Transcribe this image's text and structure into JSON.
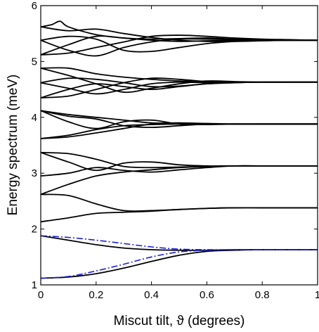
{
  "chart_data": {
    "type": "line",
    "title": "",
    "xlabel": "Miscut tilt, ϑ  (degrees)",
    "ylabel": "Energy spectrum  (meV)",
    "xlim": [
      0,
      1
    ],
    "ylim": [
      1,
      6
    ],
    "xticks": [
      0,
      0.2,
      0.4,
      0.6,
      0.8,
      1
    ],
    "xtick_labels": [
      "0",
      "0.2",
      "0.4",
      "0.6",
      "0.8",
      "1"
    ],
    "yticks": [
      1,
      2,
      3,
      4,
      5,
      6
    ],
    "ytick_labels": [
      "1",
      "2",
      "3",
      "4",
      "5",
      "6"
    ],
    "grid": false,
    "legend": "none",
    "colors": {
      "solid": "#000000",
      "dashdot": "#1f1fcf"
    },
    "series": [
      {
        "style": "solid",
        "x": [
          0,
          0.1,
          0.2,
          0.3,
          0.4,
          0.5,
          0.6,
          0.7,
          0.8,
          0.9,
          1.0
        ],
        "y": [
          1.12,
          1.14,
          1.2,
          1.3,
          1.42,
          1.53,
          1.6,
          1.62,
          1.63,
          1.63,
          1.63
        ]
      },
      {
        "style": "solid",
        "x": [
          0,
          0.1,
          0.2,
          0.3,
          0.4,
          0.5,
          0.6,
          0.7,
          0.8,
          0.9,
          1.0
        ],
        "y": [
          1.88,
          1.8,
          1.72,
          1.66,
          1.63,
          1.62,
          1.62,
          1.63,
          1.63,
          1.63,
          1.63
        ]
      },
      {
        "style": "dashdot",
        "x": [
          0,
          0.1,
          0.2,
          0.3,
          0.4,
          0.5,
          0.6,
          0.7,
          0.8,
          0.9,
          1.0
        ],
        "y": [
          1.12,
          1.15,
          1.25,
          1.37,
          1.5,
          1.59,
          1.62,
          1.63,
          1.63,
          1.63,
          1.63
        ]
      },
      {
        "style": "dashdot",
        "x": [
          0,
          0.1,
          0.2,
          0.3,
          0.4,
          0.5,
          0.6,
          0.7,
          0.8,
          0.9,
          1.0
        ],
        "y": [
          1.88,
          1.85,
          1.8,
          1.74,
          1.68,
          1.64,
          1.63,
          1.63,
          1.63,
          1.63,
          1.63
        ]
      },
      {
        "style": "solid",
        "x": [
          0,
          0.1,
          0.2,
          0.3,
          0.4,
          0.5,
          0.6,
          0.7,
          0.8,
          0.9,
          1.0
        ],
        "y": [
          2.13,
          2.2,
          2.28,
          2.3,
          2.32,
          2.35,
          2.37,
          2.38,
          2.38,
          2.38,
          2.38
        ]
      },
      {
        "style": "solid",
        "x": [
          0,
          0.1,
          0.2,
          0.3,
          0.4,
          0.5,
          0.6,
          0.7,
          0.8,
          0.9,
          1.0
        ],
        "y": [
          2.62,
          2.6,
          2.45,
          2.33,
          2.33,
          2.35,
          2.37,
          2.38,
          2.38,
          2.38,
          2.38
        ]
      },
      {
        "style": "solid",
        "x": [
          0,
          0.1,
          0.2,
          0.3,
          0.4,
          0.5,
          0.6,
          0.7,
          0.8,
          0.9,
          1.0
        ],
        "y": [
          2.62,
          2.8,
          2.95,
          3.02,
          3.06,
          3.1,
          3.12,
          3.13,
          3.13,
          3.13,
          3.13
        ]
      },
      {
        "style": "solid",
        "x": [
          0,
          0.1,
          0.2,
          0.3,
          0.4,
          0.5,
          0.6,
          0.7,
          0.8,
          0.9,
          1.0
        ],
        "y": [
          2.95,
          3.0,
          3.1,
          3.05,
          3.02,
          3.06,
          3.1,
          3.13,
          3.13,
          3.13,
          3.13
        ]
      },
      {
        "style": "solid",
        "x": [
          0,
          0.1,
          0.2,
          0.3,
          0.4,
          0.5,
          0.6,
          0.7,
          0.8,
          0.9,
          1.0
        ],
        "y": [
          3.37,
          3.35,
          3.25,
          3.12,
          3.1,
          3.11,
          3.12,
          3.13,
          3.13,
          3.13,
          3.13
        ]
      },
      {
        "style": "solid",
        "x": [
          0,
          0.1,
          0.2,
          0.3,
          0.4,
          0.5,
          0.6,
          0.7,
          0.8,
          0.9,
          1.0
        ],
        "y": [
          3.37,
          3.2,
          3.05,
          3.18,
          3.2,
          3.15,
          3.13,
          3.13,
          3.13,
          3.13,
          3.13
        ]
      },
      {
        "style": "solid",
        "x": [
          0,
          0.1,
          0.2,
          0.3,
          0.4,
          0.5,
          0.6,
          0.7,
          0.8,
          0.9,
          1.0
        ],
        "y": [
          3.62,
          3.68,
          3.78,
          3.85,
          3.87,
          3.88,
          3.88,
          3.88,
          3.88,
          3.88,
          3.88
        ]
      },
      {
        "style": "solid",
        "x": [
          0,
          0.1,
          0.2,
          0.3,
          0.4,
          0.5,
          0.6,
          0.7,
          0.8,
          0.9,
          1.0
        ],
        "y": [
          3.62,
          3.65,
          3.72,
          3.8,
          3.88,
          3.9,
          3.88,
          3.88,
          3.88,
          3.88,
          3.88
        ]
      },
      {
        "style": "solid",
        "x": [
          0,
          0.1,
          0.2,
          0.3,
          0.4,
          0.5,
          0.6,
          0.7,
          0.8,
          0.9,
          1.0
        ],
        "y": [
          4.12,
          3.92,
          3.8,
          3.92,
          3.95,
          3.88,
          3.87,
          3.88,
          3.88,
          3.88,
          3.88
        ]
      },
      {
        "style": "solid",
        "x": [
          0,
          0.1,
          0.2,
          0.3,
          0.4,
          0.5,
          0.6,
          0.7,
          0.8,
          0.9,
          1.0
        ],
        "y": [
          4.12,
          4.02,
          3.97,
          3.85,
          3.82,
          3.85,
          3.88,
          3.88,
          3.88,
          3.88,
          3.88
        ]
      },
      {
        "style": "solid",
        "x": [
          0,
          0.1,
          0.2,
          0.3,
          0.4,
          0.5,
          0.6,
          0.7,
          0.8,
          0.9,
          1.0
        ],
        "y": [
          4.12,
          4.05,
          4.0,
          3.95,
          3.9,
          3.9,
          3.89,
          3.88,
          3.88,
          3.88,
          3.88
        ]
      },
      {
        "style": "solid",
        "x": [
          0,
          0.1,
          0.2,
          0.3,
          0.4,
          0.5,
          0.6,
          0.7,
          0.8,
          0.9,
          1.0
        ],
        "y": [
          4.35,
          4.5,
          4.6,
          4.55,
          4.5,
          4.55,
          4.6,
          4.62,
          4.63,
          4.63,
          4.63
        ]
      },
      {
        "style": "solid",
        "x": [
          0,
          0.1,
          0.2,
          0.3,
          0.4,
          0.5,
          0.6,
          0.7,
          0.8,
          0.9,
          1.0
        ],
        "y": [
          4.35,
          4.38,
          4.5,
          4.62,
          4.7,
          4.68,
          4.64,
          4.63,
          4.63,
          4.63,
          4.63
        ]
      },
      {
        "style": "solid",
        "x": [
          0,
          0.1,
          0.2,
          0.3,
          0.4,
          0.5,
          0.6,
          0.7,
          0.8,
          0.9,
          1.0
        ],
        "y": [
          4.62,
          4.52,
          4.42,
          4.5,
          4.6,
          4.63,
          4.62,
          4.63,
          4.63,
          4.63,
          4.63
        ]
      },
      {
        "style": "solid",
        "x": [
          0,
          0.1,
          0.2,
          0.3,
          0.4,
          0.5,
          0.6,
          0.7,
          0.8,
          0.9,
          1.0
        ],
        "y": [
          4.62,
          4.7,
          4.68,
          4.62,
          4.55,
          4.56,
          4.6,
          4.62,
          4.63,
          4.63,
          4.63
        ]
      },
      {
        "style": "solid",
        "x": [
          0,
          0.1,
          0.2,
          0.3,
          0.4,
          0.5,
          0.6,
          0.7,
          0.8,
          0.9,
          1.0
        ],
        "y": [
          4.88,
          4.75,
          4.6,
          4.45,
          4.52,
          4.6,
          4.65,
          4.64,
          4.63,
          4.63,
          4.63
        ]
      },
      {
        "style": "solid",
        "x": [
          0,
          0.1,
          0.2,
          0.3,
          0.4,
          0.5,
          0.6,
          0.7,
          0.8,
          0.9,
          1.0
        ],
        "y": [
          4.88,
          4.88,
          4.78,
          4.72,
          4.68,
          4.65,
          4.64,
          4.63,
          4.63,
          4.63,
          4.63
        ]
      },
      {
        "style": "solid",
        "x": [
          0,
          0.1,
          0.2,
          0.3,
          0.4,
          0.5,
          0.6,
          0.7,
          0.8,
          0.9,
          1.0
        ],
        "y": [
          5.12,
          5.3,
          5.45,
          5.42,
          5.38,
          5.36,
          5.37,
          5.38,
          5.38,
          5.38,
          5.38
        ]
      },
      {
        "style": "solid",
        "x": [
          0,
          0.1,
          0.2,
          0.3,
          0.4,
          0.5,
          0.6,
          0.7,
          0.8,
          0.9,
          1.0
        ],
        "y": [
          5.12,
          5.15,
          5.25,
          5.35,
          5.45,
          5.47,
          5.45,
          5.42,
          5.4,
          5.39,
          5.38
        ]
      },
      {
        "style": "solid",
        "x": [
          0,
          0.1,
          0.2,
          0.3,
          0.4,
          0.5,
          0.6,
          0.7,
          0.8,
          0.9,
          1.0
        ],
        "y": [
          5.38,
          5.2,
          5.1,
          5.25,
          5.35,
          5.4,
          5.4,
          5.39,
          5.38,
          5.38,
          5.38
        ]
      },
      {
        "style": "solid",
        "x": [
          0,
          0.1,
          0.2,
          0.3,
          0.4,
          0.5,
          0.6,
          0.7,
          0.8,
          0.9,
          1.0
        ],
        "y": [
          5.38,
          5.45,
          5.4,
          5.2,
          5.18,
          5.25,
          5.32,
          5.36,
          5.38,
          5.38,
          5.38
        ]
      },
      {
        "style": "solid",
        "x": [
          0,
          0.04,
          0.07,
          0.1,
          0.2,
          0.3,
          0.4,
          0.5,
          0.6,
          0.7,
          0.8,
          0.9,
          1.0
        ],
        "y": [
          5.62,
          5.66,
          5.72,
          5.62,
          5.48,
          5.42,
          5.4,
          5.41,
          5.42,
          5.4,
          5.39,
          5.38,
          5.38
        ]
      },
      {
        "style": "solid",
        "x": [
          0,
          0.1,
          0.2,
          0.3,
          0.4,
          0.5,
          0.6,
          0.7,
          0.8,
          0.9,
          1.0
        ],
        "y": [
          5.62,
          5.55,
          5.58,
          5.5,
          5.43,
          5.38,
          5.36,
          5.36,
          5.37,
          5.38,
          5.38
        ]
      }
    ]
  }
}
